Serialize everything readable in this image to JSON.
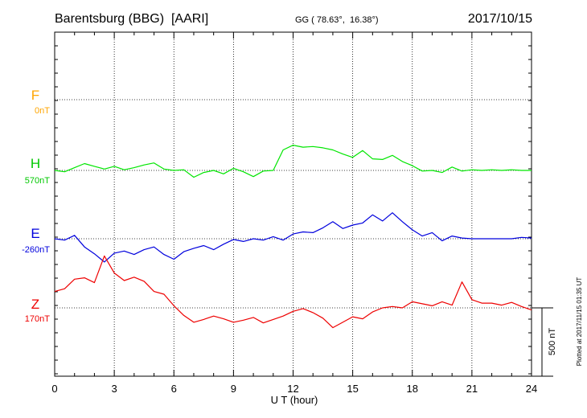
{
  "header": {
    "station": "Barentsburg (BBG)  [AARI]",
    "coords": "GG ( 78.63°,  16.38°)",
    "date": "2017/10/15"
  },
  "footer": {
    "plotted_note": "Plotted at 2017/11/15 01:35 UT"
  },
  "scale_bar": {
    "label": "500 nT",
    "value_nT": 500
  },
  "colors": {
    "F": "#ffa500",
    "H": "#00e600",
    "E": "#0000dd",
    "Z": "#ee0000",
    "axis": "#000000"
  },
  "chart_data": {
    "type": "line",
    "xlabel": "U T (hour)",
    "xlim": [
      0,
      24
    ],
    "x_ticks": [
      0,
      3,
      6,
      9,
      12,
      15,
      18,
      21,
      24
    ],
    "x_tick_labels": [
      "0",
      "3",
      "6",
      "9",
      "12",
      "15",
      "18",
      "21",
      "24"
    ],
    "grid": true,
    "series": [
      {
        "name": "F",
        "baseline_label": "0nT",
        "baseline_nT": 0,
        "x": [],
        "values": []
      },
      {
        "name": "H",
        "baseline_label": "570nT",
        "baseline_nT": 570,
        "x": [
          0,
          0.5,
          1,
          1.5,
          2,
          2.5,
          3,
          3.5,
          4,
          4.5,
          5,
          5.5,
          6,
          6.5,
          7,
          7.5,
          8,
          8.5,
          9,
          9.5,
          10,
          10.5,
          11,
          11.5,
          12,
          12.5,
          13,
          13.5,
          14,
          14.5,
          15,
          15.5,
          16,
          16.5,
          17,
          17.5,
          18,
          18.5,
          19,
          19.5,
          20,
          20.5,
          21,
          21.5,
          22,
          22.5,
          23,
          23.5,
          24
        ],
        "values": [
          0,
          -10,
          20,
          50,
          30,
          10,
          30,
          5,
          20,
          40,
          55,
          10,
          0,
          5,
          -50,
          -15,
          0,
          -25,
          15,
          -10,
          -45,
          -5,
          0,
          150,
          185,
          170,
          175,
          165,
          150,
          120,
          95,
          145,
          85,
          80,
          110,
          65,
          35,
          -5,
          0,
          -15,
          25,
          -5,
          5,
          0,
          5,
          0,
          5,
          0,
          0
        ]
      },
      {
        "name": "E",
        "baseline_label": "-260nT",
        "baseline_nT": -260,
        "x": [
          0,
          0.5,
          1,
          1.5,
          2,
          2.5,
          3,
          3.5,
          4,
          4.5,
          5,
          5.5,
          6,
          6.5,
          7,
          7.5,
          8,
          8.5,
          9,
          9.5,
          10,
          10.5,
          11,
          11.5,
          12,
          12.5,
          13,
          13.5,
          14,
          14.5,
          15,
          15.5,
          16,
          16.5,
          17,
          17.5,
          18,
          18.5,
          19,
          19.5,
          20,
          20.5,
          21,
          21.5,
          22,
          22.5,
          23,
          23.5,
          24
        ],
        "values": [
          0,
          -10,
          25,
          -60,
          -110,
          -170,
          -105,
          -90,
          -115,
          -80,
          -60,
          -115,
          -150,
          -95,
          -70,
          -50,
          -80,
          -40,
          -5,
          -20,
          0,
          -10,
          15,
          -10,
          35,
          50,
          45,
          80,
          125,
          75,
          100,
          115,
          175,
          130,
          190,
          125,
          65,
          20,
          45,
          -15,
          20,
          5,
          0,
          0,
          0,
          0,
          0,
          10,
          5
        ]
      },
      {
        "name": "Z",
        "baseline_label": "170nT",
        "baseline_nT": 170,
        "x": [
          0,
          0.5,
          1,
          1.5,
          2,
          2.5,
          3,
          3.5,
          4,
          4.5,
          5,
          5.5,
          6,
          6.5,
          7,
          7.5,
          8,
          8.5,
          9,
          9.5,
          10,
          10.5,
          11,
          11.5,
          12,
          12.5,
          13,
          13.5,
          14,
          14.5,
          15,
          15.5,
          16,
          16.5,
          17,
          17.5,
          18,
          18.5,
          19,
          19.5,
          20,
          20.5,
          21,
          21.5,
          22,
          22.5,
          23,
          23.5,
          24
        ],
        "values": [
          120,
          140,
          210,
          220,
          185,
          380,
          255,
          200,
          225,
          195,
          120,
          100,
          15,
          -55,
          -105,
          -85,
          -60,
          -80,
          -105,
          -90,
          -70,
          -110,
          -85,
          -60,
          -25,
          -5,
          -35,
          -75,
          -145,
          -105,
          -65,
          -80,
          -30,
          0,
          10,
          0,
          45,
          30,
          15,
          45,
          20,
          190,
          60,
          35,
          35,
          20,
          40,
          10,
          -15
        ]
      }
    ]
  }
}
